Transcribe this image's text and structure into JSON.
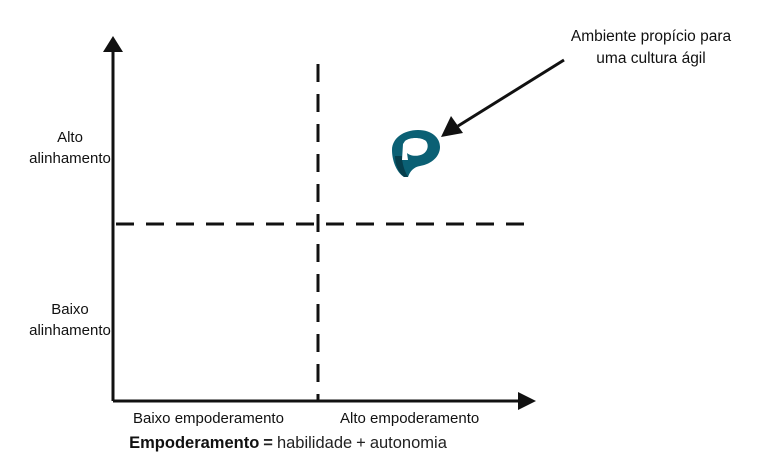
{
  "y_axis": {
    "high_label": [
      "Alto",
      "alinhamento"
    ],
    "low_label": [
      "Baixo",
      "alinhamento"
    ]
  },
  "x_axis": {
    "low_label": "Baixo empoderamento",
    "high_label": "Alto empoderamento"
  },
  "callout": {
    "lines": [
      "Ambiente propício para",
      "uma cultura ágil"
    ]
  },
  "formula": {
    "term": "Empoderamento",
    "equals": "=",
    "left": "habilidade",
    "plus": "+",
    "right": "autonomia"
  },
  "icons": {
    "marker": "brand-logo-marker-icon"
  },
  "colors": {
    "axis": "#111111",
    "marker": "#0b6074",
    "marker_dark": "#063e4c"
  }
}
